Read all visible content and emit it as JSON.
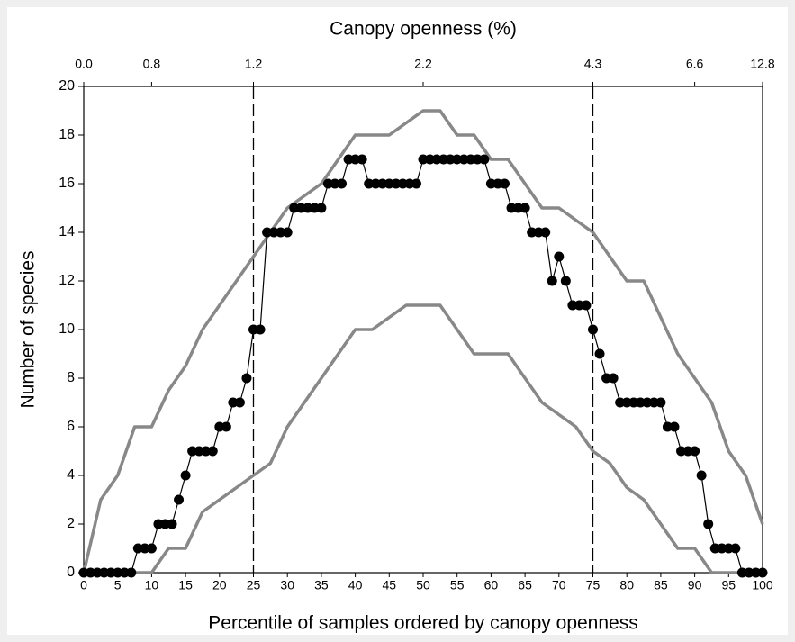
{
  "chart_data": {
    "type": "line",
    "x2label": "Canopy openness (%)",
    "xlabel": "Percentile of samples ordered by canopy openness",
    "ylabel": "Number of species",
    "xlim": [
      0,
      100
    ],
    "ylim": [
      0,
      20
    ],
    "xticks": [
      0,
      5,
      10,
      15,
      20,
      25,
      30,
      35,
      40,
      45,
      50,
      55,
      60,
      65,
      70,
      75,
      80,
      85,
      90,
      95,
      100
    ],
    "yticks": [
      0,
      2,
      4,
      6,
      8,
      10,
      12,
      14,
      16,
      18,
      20
    ],
    "x2ticks": [
      {
        "value": 0,
        "label": "0.0"
      },
      {
        "value": 10,
        "label": "0.8"
      },
      {
        "value": 25,
        "label": "1.2"
      },
      {
        "value": 50,
        "label": "2.2"
      },
      {
        "value": 75,
        "label": "4.3"
      },
      {
        "value": 90,
        "label": "6.6"
      },
      {
        "value": 100,
        "label": "12.8"
      }
    ],
    "vlines": [
      25,
      75
    ],
    "series": [
      {
        "color": "#888888",
        "marker": false,
        "x": [
          0,
          2.5,
          5,
          7.5,
          10,
          12.5,
          15,
          17.5,
          20,
          22.5,
          25,
          27.5,
          30,
          32.5,
          35,
          37.5,
          40,
          45,
          47.5,
          50,
          52.5,
          55,
          57.5,
          60,
          62.5,
          65,
          67.5,
          70,
          72.5,
          75,
          77.5,
          80,
          82.5,
          85,
          87.5,
          90,
          92.5,
          95,
          97.5,
          100
        ],
        "values": [
          0,
          3,
          4,
          6,
          6,
          7.5,
          8.5,
          10,
          11,
          12,
          13,
          14,
          15,
          15.5,
          16,
          17,
          18,
          18,
          18.5,
          19,
          19,
          18,
          18,
          17,
          17,
          16,
          15,
          15,
          14.5,
          14,
          13,
          12,
          12,
          10.5,
          9,
          8,
          7,
          5,
          4,
          2
        ]
      },
      {
        "color": "#888888",
        "marker": false,
        "x": [
          0,
          5,
          10,
          12.5,
          15,
          17.5,
          20,
          22.5,
          25,
          27.5,
          30,
          32.5,
          35,
          37.5,
          40,
          42.5,
          45,
          47.5,
          52.5,
          55,
          57.5,
          62.5,
          65,
          67.5,
          70,
          72.5,
          75,
          77.5,
          80,
          82.5,
          85,
          87.5,
          90,
          92.5,
          95,
          100
        ],
        "values": [
          0,
          0,
          0,
          1,
          1,
          2.5,
          3,
          3.5,
          4,
          4.5,
          6,
          7,
          8,
          9,
          10,
          10,
          10.5,
          11,
          11,
          10,
          9,
          9,
          8,
          7,
          6.5,
          6,
          5,
          4.5,
          3.5,
          3,
          2,
          1,
          1,
          0,
          0,
          0
        ]
      },
      {
        "color": "#000000",
        "marker": true,
        "x": [
          0,
          1,
          2,
          3,
          4,
          5,
          6,
          7,
          8,
          9,
          10,
          11,
          12,
          13,
          14,
          15,
          16,
          17,
          18,
          19,
          20,
          21,
          22,
          23,
          24,
          25,
          26,
          27,
          28,
          29,
          30,
          31,
          32,
          33,
          34,
          35,
          36,
          37,
          38,
          39,
          40,
          41,
          42,
          43,
          44,
          45,
          46,
          47,
          48,
          49,
          50,
          51,
          52,
          53,
          54,
          55,
          56,
          57,
          58,
          59,
          60,
          61,
          62,
          63,
          64,
          65,
          66,
          67,
          68,
          69,
          70,
          71,
          72,
          73,
          74,
          75,
          76,
          77,
          78,
          79,
          80,
          81,
          82,
          83,
          84,
          85,
          86,
          87,
          88,
          89,
          90,
          91,
          92,
          93,
          94,
          95,
          96,
          97,
          98,
          99,
          100
        ],
        "values": [
          0,
          0,
          0,
          0,
          0,
          0,
          0,
          0,
          1,
          1,
          1,
          2,
          2,
          2,
          3,
          4,
          5,
          5,
          5,
          5,
          6,
          6,
          7,
          7,
          8,
          10,
          10,
          14,
          14,
          14,
          14,
          15,
          15,
          15,
          15,
          15,
          16,
          16,
          16,
          17,
          17,
          17,
          16,
          16,
          16,
          16,
          16,
          16,
          16,
          16,
          17,
          17,
          17,
          17,
          17,
          17,
          17,
          17,
          17,
          17,
          16,
          16,
          16,
          15,
          15,
          15,
          14,
          14,
          14,
          12,
          13,
          12,
          11,
          11,
          11,
          10,
          9,
          8,
          8,
          7,
          7,
          7,
          7,
          7,
          7,
          7,
          6,
          6,
          5,
          5,
          5,
          4,
          2,
          1,
          1,
          1,
          1,
          0,
          0,
          0,
          0
        ]
      }
    ]
  }
}
